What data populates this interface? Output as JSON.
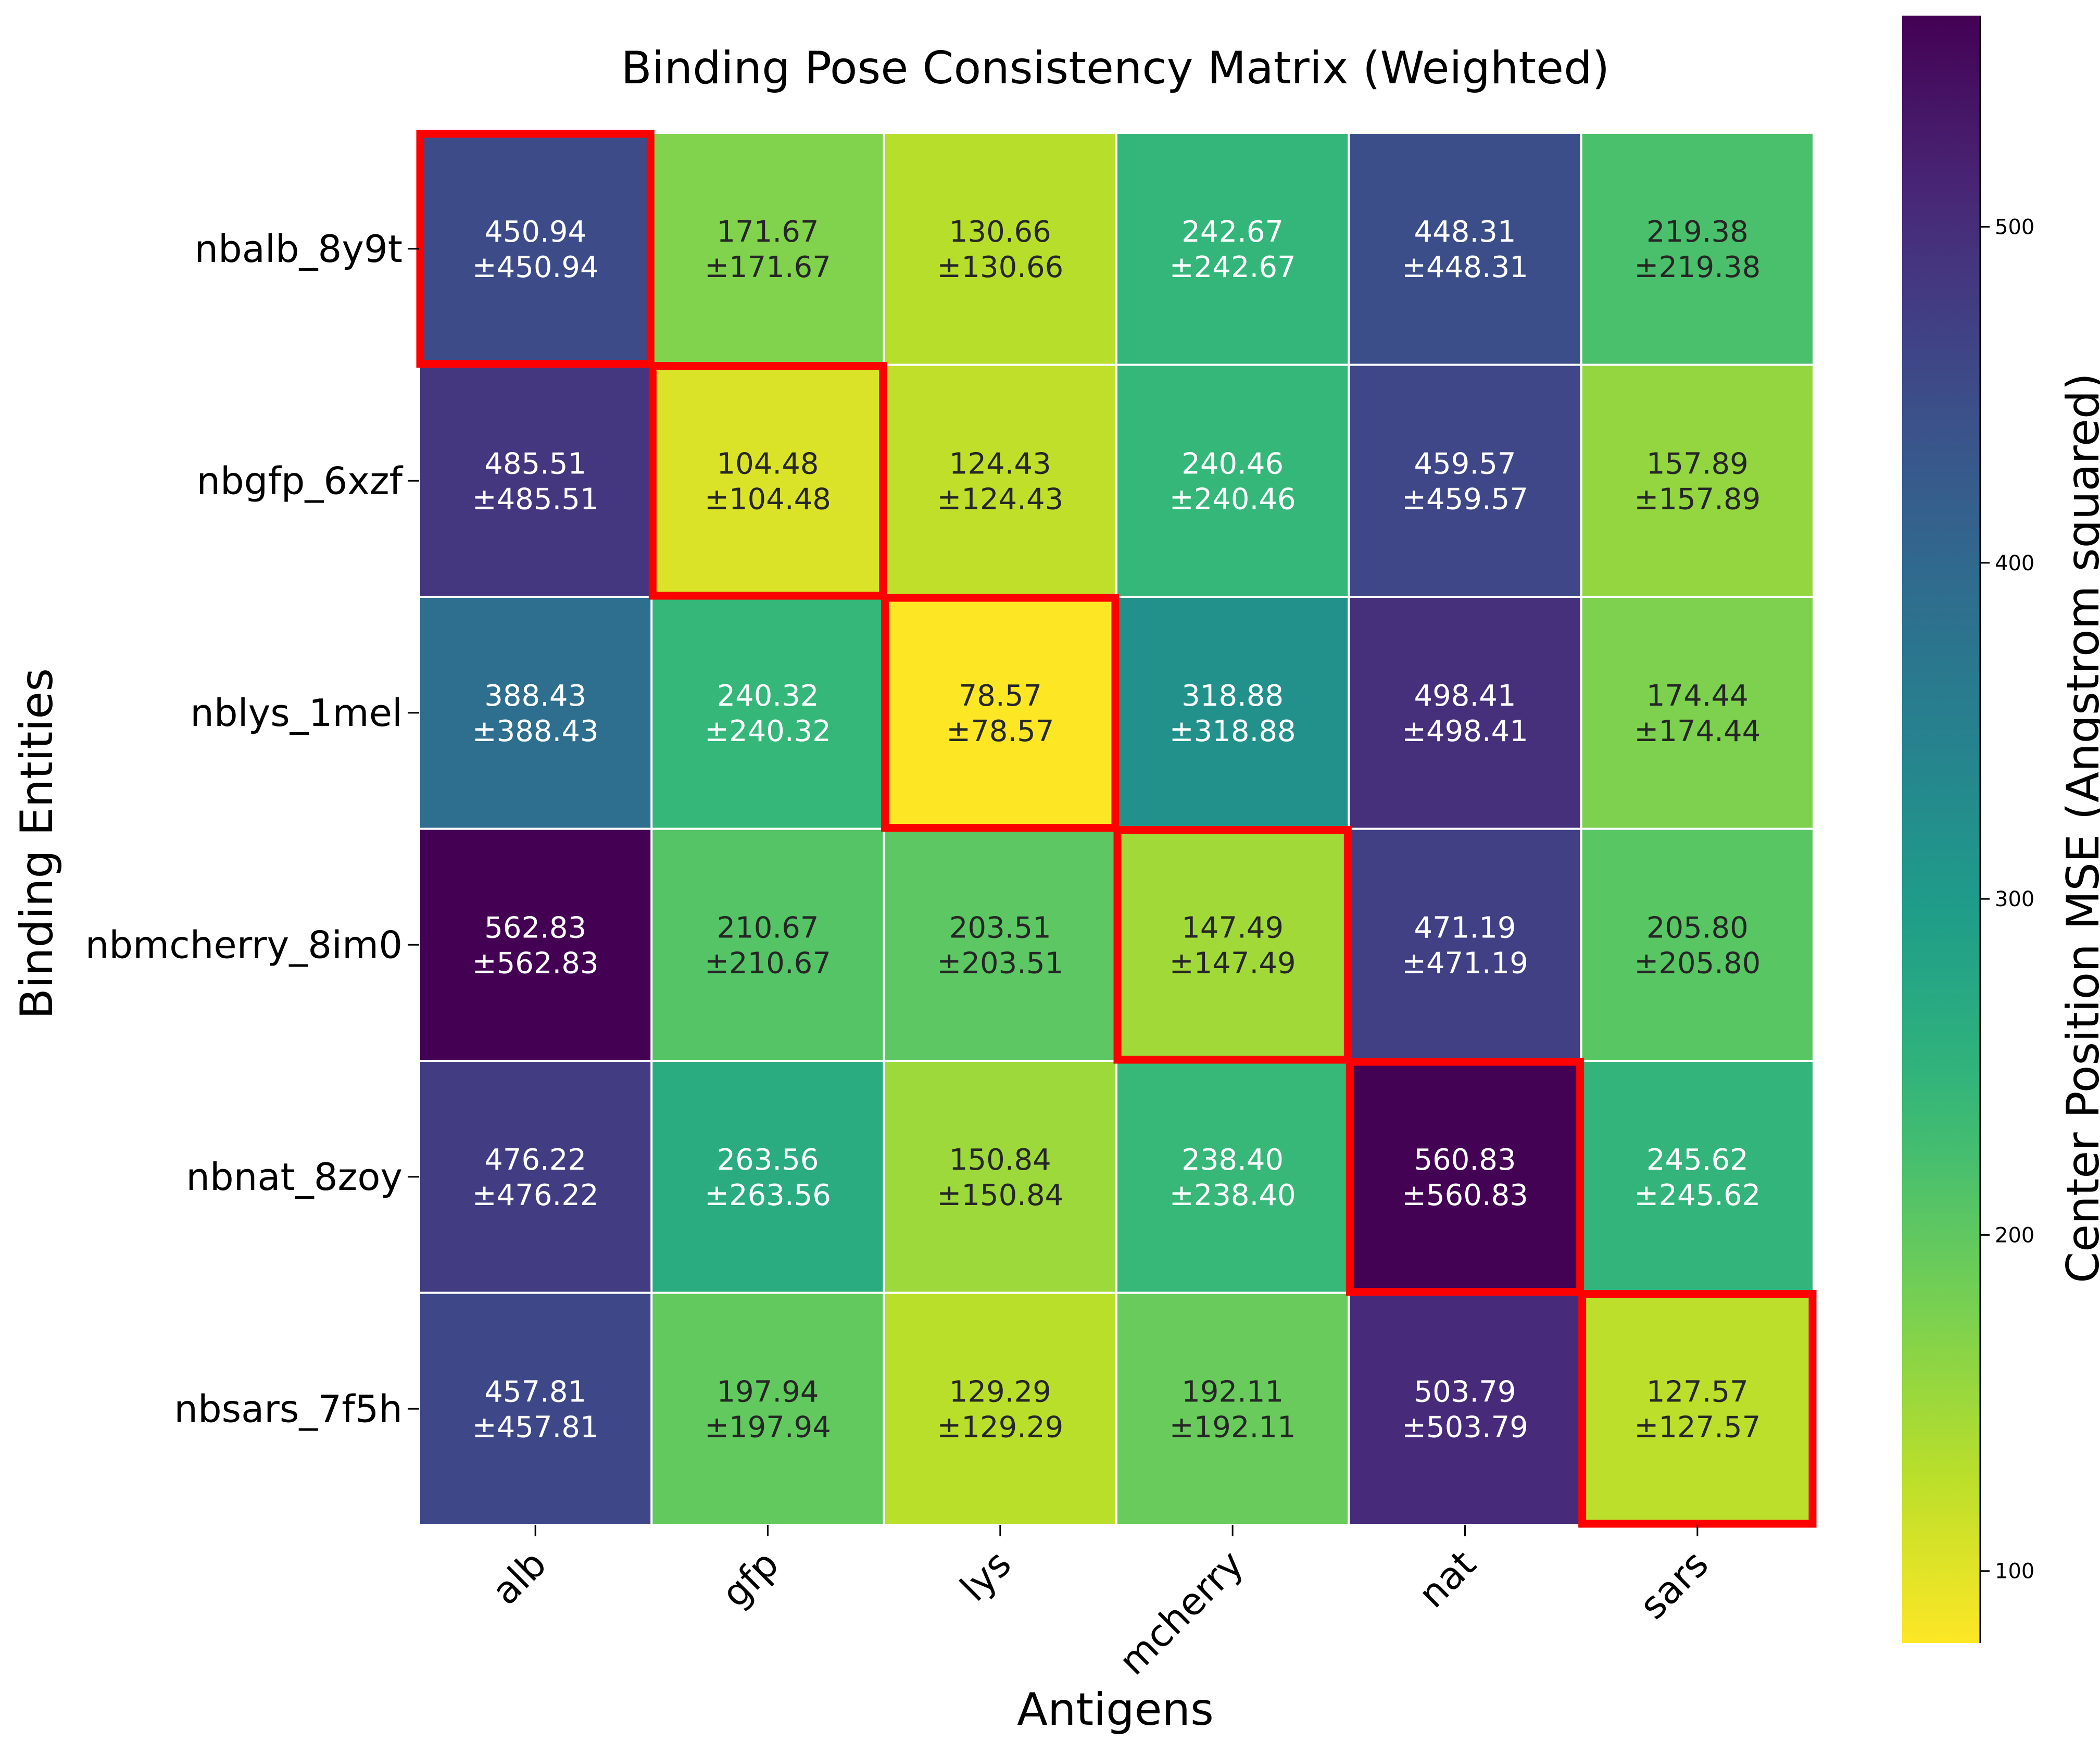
{
  "chart_data": {
    "type": "heatmap",
    "title": "Binding Pose Consistency Matrix (Weighted)",
    "xlabel": "Antigens",
    "ylabel": "Binding Entities",
    "x_categories": [
      "alb",
      "gfp",
      "lys",
      "mcherry",
      "nat",
      "sars"
    ],
    "y_categories": [
      "nbalb_8y9t",
      "nbgfp_6xzf",
      "nblys_1mel",
      "nbmcherry_8im0",
      "nbnat_8zoy",
      "nbsars_7f5h"
    ],
    "values": [
      [
        450.94,
        171.67,
        130.66,
        242.67,
        448.31,
        219.38
      ],
      [
        485.51,
        104.48,
        124.43,
        240.46,
        459.57,
        157.89
      ],
      [
        388.43,
        240.32,
        78.57,
        318.88,
        498.41,
        174.44
      ],
      [
        562.83,
        210.67,
        203.51,
        147.49,
        471.19,
        205.8
      ],
      [
        476.22,
        263.56,
        150.84,
        238.4,
        560.83,
        245.62
      ],
      [
        457.81,
        197.94,
        129.29,
        192.11,
        503.79,
        127.57
      ]
    ],
    "errors": [
      [
        450.94,
        171.67,
        130.66,
        242.67,
        448.31,
        219.38
      ],
      [
        485.51,
        104.48,
        124.43,
        240.46,
        459.57,
        157.89
      ],
      [
        388.43,
        240.32,
        78.57,
        318.88,
        498.41,
        174.44
      ],
      [
        562.83,
        210.67,
        203.51,
        147.49,
        471.19,
        205.8
      ],
      [
        476.22,
        263.56,
        150.84,
        238.4,
        560.83,
        245.62
      ],
      [
        457.81,
        197.94,
        129.29,
        192.11,
        503.79,
        127.57
      ]
    ],
    "highlighted_cells": [
      [
        0,
        0
      ],
      [
        1,
        1
      ],
      [
        2,
        2
      ],
      [
        3,
        3
      ],
      [
        4,
        4
      ],
      [
        5,
        5
      ]
    ],
    "highlight_color": "#ff0000",
    "colormap": "viridis_r",
    "colorbar": {
      "label": "Center Position MSE (Angstrom squared)",
      "vmin": 78.57,
      "vmax": 562.83,
      "ticks": [
        100,
        200,
        300,
        400,
        500
      ]
    }
  }
}
